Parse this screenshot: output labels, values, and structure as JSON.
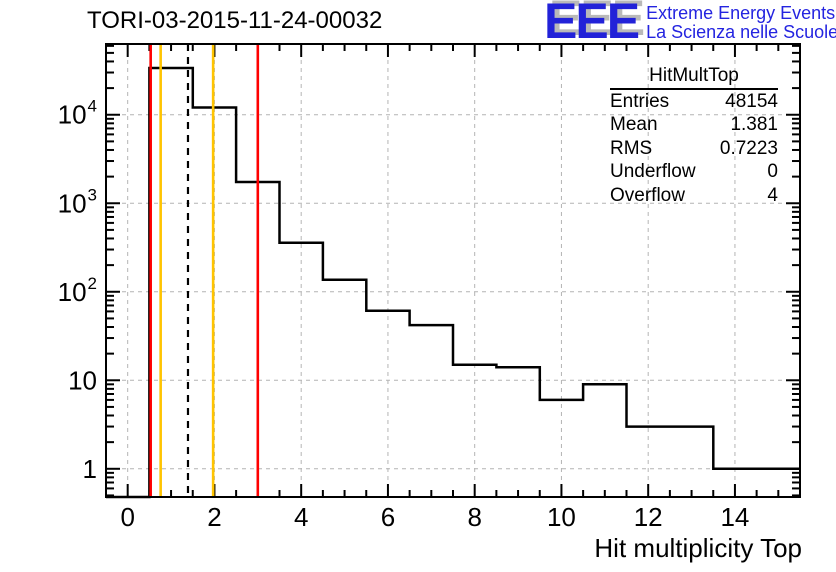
{
  "header": {
    "title": "TORI-03-2015-11-24-00032",
    "logo": {
      "acronym": "EEE",
      "line1": "Extreme Energy Events",
      "line2": "La Scienza nelle Scuole",
      "color": "#2222d8",
      "shadow_color": "#b9b9b9"
    }
  },
  "stats_box": {
    "title": "HitMultTop",
    "rows": [
      {
        "label": "Entries",
        "value": "48154"
      },
      {
        "label": "Mean",
        "value": "1.381"
      },
      {
        "label": "RMS",
        "value": "0.7223"
      },
      {
        "label": "Underflow",
        "value": "0"
      },
      {
        "label": "Overflow",
        "value": "4"
      }
    ]
  },
  "chart_data": {
    "type": "bar",
    "title": "TORI-03-2015-11-24-00032",
    "xlabel": "Hit multiplicity Top",
    "ylabel": "",
    "xlim": [
      -0.5,
      15.5
    ],
    "ylog": true,
    "ylim": [
      0.48,
      63000
    ],
    "grid": true,
    "categories": [
      0,
      1,
      2,
      3,
      4,
      5,
      6,
      7,
      8,
      9,
      10,
      11,
      12,
      13,
      14,
      15
    ],
    "values": [
      0,
      33700,
      12060,
      1740,
      358,
      137,
      61,
      42,
      15,
      14,
      6,
      9,
      3,
      3,
      1,
      1
    ],
    "bin_width": 1,
    "x_ticks": [
      0,
      2,
      4,
      6,
      8,
      10,
      12,
      14
    ],
    "x_minor_step": 0.5,
    "y_ticks": [
      {
        "value": 1,
        "label": "1"
      },
      {
        "value": 10,
        "label": "10"
      },
      {
        "value": 100,
        "label": "10^2"
      },
      {
        "value": 1000,
        "label": "10^3"
      },
      {
        "value": 10000,
        "label": "10^4"
      }
    ],
    "hist_color": "#000000",
    "grid_color": "#b4b4b4",
    "markers": [
      {
        "name": "red-threshold-low",
        "x": 0.53,
        "color": "#ff0000",
        "style": "solid"
      },
      {
        "name": "orange-threshold-low",
        "x": 0.76,
        "color": "#ffc400",
        "style": "solid"
      },
      {
        "name": "mean-dashed-line",
        "x": 1.39,
        "color": "#000000",
        "style": "dashed"
      },
      {
        "name": "orange-threshold-high",
        "x": 1.97,
        "color": "#ffc400",
        "style": "solid"
      },
      {
        "name": "red-threshold-high",
        "x": 3.0,
        "color": "#ff0000",
        "style": "solid"
      }
    ]
  }
}
